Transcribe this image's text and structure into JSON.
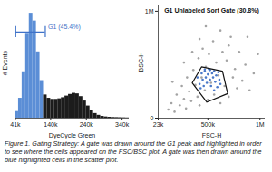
{
  "chart_data": [
    {
      "type": "histogram",
      "xlabel": "DyeCycle Green",
      "ylabel": "# Events",
      "bins": [
        40000,
        50000,
        60000,
        70000,
        80000,
        90000,
        100000,
        110000,
        120000,
        130000,
        140000,
        150000,
        160000,
        170000,
        180000,
        190000,
        200000,
        210000,
        220000,
        230000,
        240000,
        250000,
        260000,
        270000,
        280000,
        290000,
        300000,
        310000,
        320000,
        330000,
        340000,
        350000,
        360000
      ],
      "values": [
        60,
        180,
        420,
        760,
        950,
        880,
        600,
        340,
        210,
        180,
        170,
        170,
        175,
        185,
        200,
        215,
        225,
        220,
        195,
        155,
        110,
        70,
        42,
        26,
        16,
        11,
        8,
        6,
        5,
        4,
        3,
        2
      ],
      "colors": [
        "#5b8ed6",
        "#5b8ed6",
        "#5b8ed6",
        "#5b8ed6",
        "#5b8ed6",
        "#5b8ed6",
        "#5b8ed6",
        "#5b8ed6",
        "#1c1c1c",
        "#1c1c1c",
        "#1c1c1c",
        "#1c1c1c",
        "#1c1c1c",
        "#1c1c1c",
        "#1c1c1c",
        "#1c1c1c",
        "#1c1c1c",
        "#1c1c1c",
        "#1c1c1c",
        "#1c1c1c",
        "#1c1c1c",
        "#1c1c1c",
        "#1c1c1c",
        "#1c1c1c",
        "#1c1c1c",
        "#1c1c1c",
        "#1c1c1c",
        "#1c1c1c",
        "#1c1c1c",
        "#1c1c1c",
        "#1c1c1c",
        "#1c1c1c"
      ],
      "xlim": [
        40000,
        360000
      ],
      "xticks": [
        {
          "value": 41000,
          "label": "41k"
        },
        {
          "value": 140000,
          "label": "140k"
        },
        {
          "value": 240000,
          "label": "240k"
        },
        {
          "value": 340000,
          "label": "340k"
        }
      ],
      "ylim": [
        0,
        1000
      ],
      "tick_labels": "x",
      "gate": {
        "label": "G1 (45.4%)",
        "range": [
          42000,
          125000
        ],
        "color": "#3f72c8"
      }
    },
    {
      "type": "scatter",
      "xlabel": "FSC-H",
      "ylabel": "BSC-H",
      "x": [
        120000,
        150000,
        180000,
        200000,
        230000,
        250000,
        270000,
        290000,
        300000,
        320000,
        340000,
        360000,
        380000,
        400000,
        410000,
        420000,
        440000,
        450000,
        470000,
        480000,
        500000,
        510000,
        530000,
        550000,
        560000,
        580000,
        600000,
        620000,
        640000,
        660000,
        680000,
        700000,
        720000,
        740000,
        760000,
        780000,
        800000,
        830000,
        860000,
        900000,
        940000,
        980000,
        350000,
        270000,
        620000,
        480000,
        700000,
        420000,
        160000,
        880000,
        400000,
        420000,
        440000,
        450000,
        460000,
        470000,
        480000,
        490000,
        500000,
        510000,
        520000,
        530000,
        540000,
        550000,
        560000,
        570000,
        580000,
        590000,
        600000,
        610000,
        430000,
        520000,
        470000,
        560000,
        620000
      ],
      "y": [
        80000,
        140000,
        60000,
        220000,
        120000,
        300000,
        180000,
        90000,
        380000,
        250000,
        160000,
        450000,
        310000,
        200000,
        560000,
        120000,
        380000,
        650000,
        260000,
        480000,
        170000,
        600000,
        330000,
        720000,
        220000,
        520000,
        400000,
        140000,
        620000,
        300000,
        540000,
        200000,
        760000,
        380000,
        460000,
        280000,
        620000,
        350000,
        500000,
        260000,
        420000,
        600000,
        620000,
        520000,
        820000,
        860000,
        680000,
        740000,
        340000,
        760000,
        380000,
        320000,
        420000,
        360000,
        300000,
        440000,
        380000,
        330000,
        410000,
        460000,
        360000,
        300000,
        420000,
        380000,
        440000,
        340000,
        400000,
        290000,
        430000,
        360000,
        280000,
        450000,
        455000,
        260000,
        320000
      ],
      "colors": [
        "#a3a3a3",
        "#a3a3a3",
        "#a3a3a3",
        "#a3a3a3",
        "#a3a3a3",
        "#a3a3a3",
        "#a3a3a3",
        "#a3a3a3",
        "#a3a3a3",
        "#a3a3a3",
        "#a3a3a3",
        "#a3a3a3",
        "#a3a3a3",
        "#a3a3a3",
        "#a3a3a3",
        "#a3a3a3",
        "#a3a3a3",
        "#a3a3a3",
        "#a3a3a3",
        "#a3a3a3",
        "#a3a3a3",
        "#a3a3a3",
        "#a3a3a3",
        "#a3a3a3",
        "#a3a3a3",
        "#a3a3a3",
        "#a3a3a3",
        "#a3a3a3",
        "#a3a3a3",
        "#a3a3a3",
        "#a3a3a3",
        "#a3a3a3",
        "#a3a3a3",
        "#a3a3a3",
        "#a3a3a3",
        "#a3a3a3",
        "#a3a3a3",
        "#a3a3a3",
        "#a3a3a3",
        "#a3a3a3",
        "#a3a3a3",
        "#a3a3a3",
        "#a3a3a3",
        "#a3a3a3",
        "#a3a3a3",
        "#a3a3a3",
        "#a3a3a3",
        "#a3a3a3",
        "#a3a3a3",
        "#a3a3a3",
        "#4b79c9",
        "#4b79c9",
        "#4b79c9",
        "#4b79c9",
        "#4b79c9",
        "#4b79c9",
        "#4b79c9",
        "#4b79c9",
        "#4b79c9",
        "#4b79c9",
        "#4b79c9",
        "#4b79c9",
        "#4b79c9",
        "#4b79c9",
        "#4b79c9",
        "#4b79c9",
        "#4b79c9",
        "#4b79c9",
        "#4b79c9",
        "#4b79c9",
        "#4b79c9",
        "#4b79c9",
        "#4b79c9",
        "#4b79c9",
        "#4b79c9"
      ],
      "xlim": [
        23000,
        1050000
      ],
      "xticks": [
        {
          "value": 23000,
          "label": "23k"
        },
        {
          "value": 500000,
          "label": "500k"
        },
        {
          "value": 1000000,
          "label": "1M"
        }
      ],
      "ylim": [
        0,
        1050000
      ],
      "yticks": [
        0,
        {
          "value": 1000000,
          "label": "1M"
        }
      ],
      "gate": {
        "label": "G1 Unlabeled Sort Gate (30.8%)",
        "polygon": [
          [
            350000,
            330000
          ],
          [
            440000,
            480000
          ],
          [
            640000,
            440000
          ],
          [
            690000,
            230000
          ],
          [
            490000,
            150000
          ]
        ],
        "color": "#111111"
      }
    }
  ],
  "caption": "Figure 1. Gating Strategy: A gate was drawn around the G1 peak and highlighted in order to see where the cells appeared on the FSC/BSC plot. A gate was then drawn around the blue highlighted cells in the scatter plot."
}
